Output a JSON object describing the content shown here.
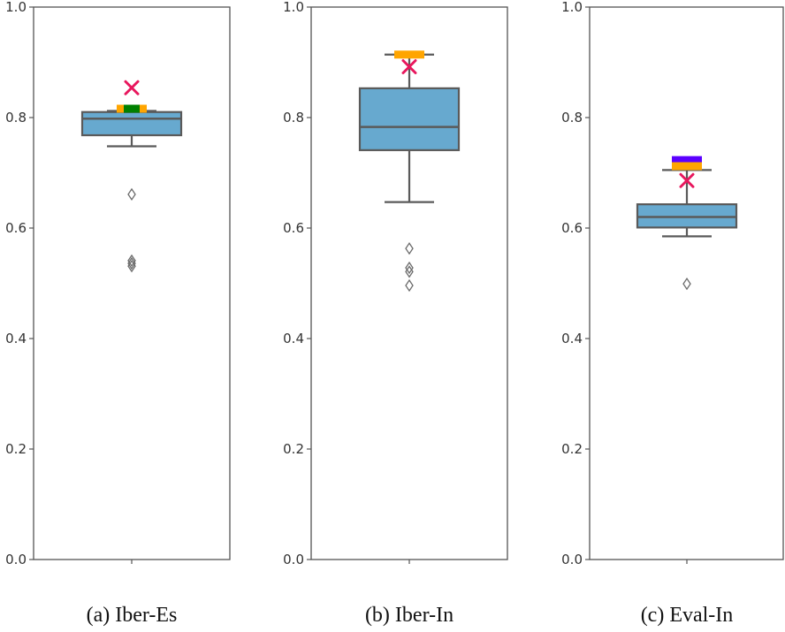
{
  "chart_data": [
    {
      "type": "box",
      "caption": "(a)  Iber-Es",
      "ylim": [
        0.0,
        1.0
      ],
      "yticks": [
        "0.0",
        "0.2",
        "0.4",
        "0.6",
        "0.8",
        "1.0"
      ],
      "box": {
        "q1": 0.768,
        "median": 0.798,
        "q3": 0.81,
        "whisker_low": 0.748,
        "whisker_high": 0.812
      },
      "outliers": [
        0.661,
        0.541,
        0.536,
        0.531
      ],
      "markers": [
        {
          "name": "orange",
          "value": 0.816,
          "color": "#ffa500"
        },
        {
          "name": "green",
          "value": 0.816,
          "color": "#008000"
        },
        {
          "name": "x",
          "value": 0.854,
          "color": "#e8175d"
        }
      ]
    },
    {
      "type": "box",
      "caption": "(b)  Iber-In",
      "ylim": [
        0.0,
        1.0
      ],
      "yticks": [
        "0.0",
        "0.2",
        "0.4",
        "0.6",
        "0.8",
        "1.0"
      ],
      "box": {
        "q1": 0.741,
        "median": 0.783,
        "q3": 0.853,
        "whisker_low": 0.647,
        "whisker_high": 0.914
      },
      "outliers": [
        0.563,
        0.528,
        0.521,
        0.496
      ],
      "markers": [
        {
          "name": "orange",
          "value": 0.914,
          "color": "#ffa500"
        },
        {
          "name": "x",
          "value": 0.892,
          "color": "#e8175d"
        }
      ]
    },
    {
      "type": "box",
      "caption": "(c)  Eval-In",
      "ylim": [
        0.0,
        1.0
      ],
      "yticks": [
        "0.0",
        "0.2",
        "0.4",
        "0.6",
        "0.8",
        "1.0"
      ],
      "box": {
        "q1": 0.601,
        "median": 0.62,
        "q3": 0.643,
        "whisker_low": 0.585,
        "whisker_high": 0.705
      },
      "outliers": [
        0.499
      ],
      "markers": [
        {
          "name": "purple",
          "value": 0.723,
          "color": "#5b00ff"
        },
        {
          "name": "orange",
          "value": 0.712,
          "color": "#ffa500"
        },
        {
          "name": "x",
          "value": 0.686,
          "color": "#e8175d"
        }
      ]
    }
  ]
}
